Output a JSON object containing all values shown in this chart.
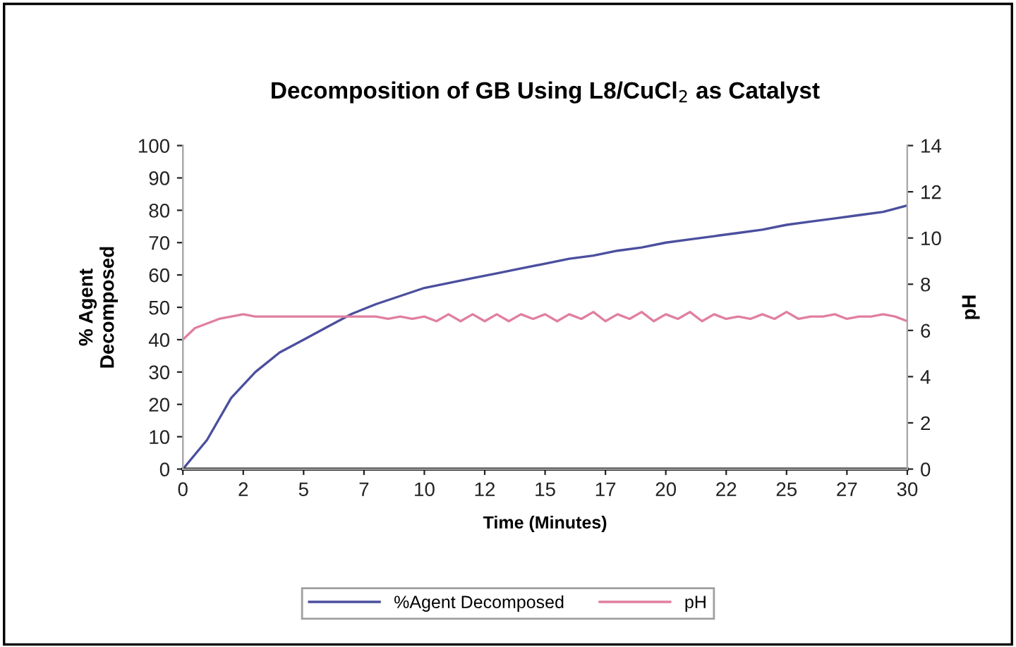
{
  "chart_data": {
    "type": "line",
    "title": "Decomposition of GB Using L8/CuCl$_{2}$ as Catalyst",
    "xlabel": "Time (Minutes)",
    "ylabel": "% Agent\nDecomposed",
    "y2label": "pH",
    "xlim": [
      0,
      30
    ],
    "xticks": [
      0,
      {
        "value": 2.5,
        "label": "2"
      },
      5,
      {
        "value": 7.5,
        "label": "7"
      },
      10,
      {
        "value": 12.5,
        "label": "12"
      },
      15,
      {
        "value": 17.5,
        "label": "17"
      },
      20,
      {
        "value": 22.5,
        "label": "22"
      },
      25,
      {
        "value": 27.5,
        "label": "27"
      },
      30
    ],
    "ylim": [
      0,
      100
    ],
    "yticks": [
      0,
      10,
      20,
      30,
      40,
      50,
      60,
      70,
      80,
      90,
      100
    ],
    "y2lim": [
      0,
      14
    ],
    "y2ticks": [
      0,
      2,
      4,
      6,
      8,
      10,
      12,
      14
    ],
    "grid": false,
    "legend": "bottom",
    "marker": "none",
    "line_style": "solid",
    "series": [
      {
        "name": "%Agent Decomposed",
        "color": "#4b4f9e",
        "x": [
          0,
          1,
          2,
          3,
          4,
          5,
          6,
          7,
          8,
          9,
          10,
          11,
          12,
          13,
          14,
          15,
          16,
          17,
          18,
          19,
          20,
          21,
          22,
          23,
          24,
          25,
          26,
          27,
          28,
          29,
          30
        ],
        "values": [
          0,
          9,
          22,
          30,
          36,
          40,
          44,
          48,
          51,
          53.5,
          56,
          57.5,
          59,
          60.5,
          62,
          63.5,
          65,
          66,
          67.5,
          68.5,
          70,
          71,
          72,
          73,
          74,
          75.5,
          76.5,
          77.5,
          78.5,
          79.5,
          81.5
        ]
      },
      {
        "name": "pH",
        "color": "#e07fa0",
        "axis": "y2",
        "x": [
          0,
          0.5,
          1,
          1.5,
          2,
          2.5,
          3,
          3.5,
          4,
          4.5,
          5,
          5.5,
          6,
          6.5,
          7,
          7.5,
          8,
          8.5,
          9,
          9.5,
          10,
          10.5,
          11,
          11.5,
          12,
          12.5,
          13,
          13.5,
          14,
          14.5,
          15,
          15.5,
          16,
          16.5,
          17,
          17.5,
          18,
          18.5,
          19,
          19.5,
          20,
          20.5,
          21,
          21.5,
          22,
          22.5,
          23,
          23.5,
          24,
          24.5,
          25,
          25.5,
          26,
          26.5,
          27,
          27.5,
          28,
          28.5,
          29,
          29.5,
          30
        ],
        "values": [
          5.6,
          6.1,
          6.3,
          6.5,
          6.6,
          6.7,
          6.6,
          6.6,
          6.6,
          6.6,
          6.6,
          6.6,
          6.6,
          6.6,
          6.6,
          6.6,
          6.6,
          6.5,
          6.6,
          6.5,
          6.6,
          6.4,
          6.7,
          6.4,
          6.7,
          6.4,
          6.7,
          6.4,
          6.7,
          6.5,
          6.7,
          6.4,
          6.7,
          6.5,
          6.8,
          6.4,
          6.7,
          6.5,
          6.8,
          6.4,
          6.7,
          6.5,
          6.8,
          6.4,
          6.7,
          6.5,
          6.6,
          6.5,
          6.7,
          6.5,
          6.8,
          6.5,
          6.6,
          6.6,
          6.7,
          6.5,
          6.6,
          6.6,
          6.7,
          6.6,
          6.4
        ]
      }
    ]
  }
}
